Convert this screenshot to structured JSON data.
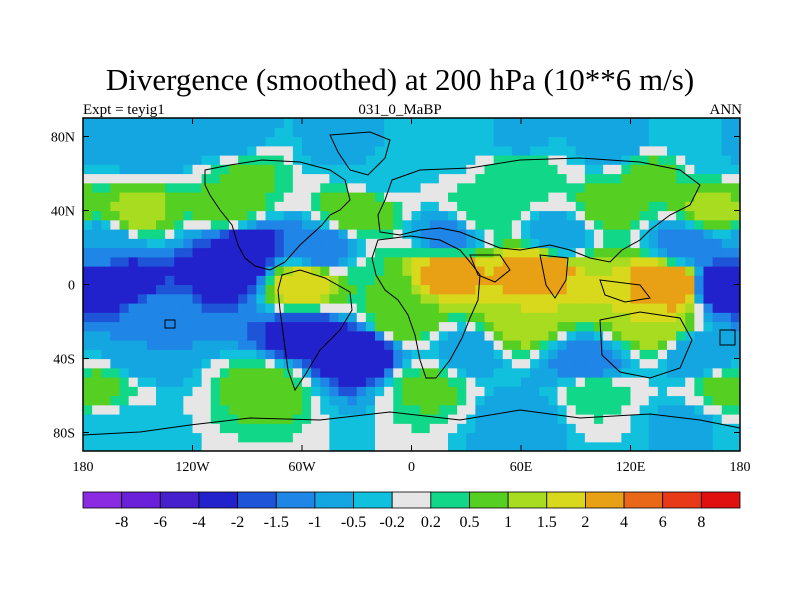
{
  "chart_data": {
    "type": "heatmap",
    "title": "Divergence (smoothed) at 200 hPa (10**6 m/s)",
    "subtitle_left": "Expt = teyig1",
    "subtitle_center": "031_0_MaBP",
    "subtitle_right": "ANN",
    "x_ticks": [
      "180",
      "120W",
      "60W",
      "0",
      "60E",
      "120E",
      "180"
    ],
    "y_ticks": [
      "80N",
      "40N",
      "0",
      "40S",
      "80S"
    ],
    "xlim": [
      -180,
      180
    ],
    "ylim": [
      -90,
      90
    ],
    "colorbar_labels": [
      "-8",
      "-6",
      "-4",
      "-2",
      "-1.5",
      "-1",
      "-0.5",
      "-0.2",
      "0.2",
      "0.5",
      "1",
      "1.5",
      "2",
      "4",
      "6",
      "8"
    ],
    "colorbar_levels": [
      -8,
      -6,
      -4,
      -2,
      -1.5,
      -1,
      -0.5,
      -0.2,
      0.2,
      0.5,
      1,
      1.5,
      2,
      4,
      6,
      8
    ],
    "colorbar_colors": [
      "#8a2be2",
      "#6a1fd8",
      "#4620cc",
      "#2222cc",
      "#1e55d8",
      "#1f85e6",
      "#14a6e0",
      "#10c0dc",
      "#e6e6e6",
      "#10d888",
      "#55d022",
      "#a8dc20",
      "#d8d81c",
      "#e8a014",
      "#e86818",
      "#e83a18",
      "#e01010"
    ],
    "field": [
      {
        "lon": -170,
        "lat": 75,
        "v": -0.6
      },
      {
        "lon": -140,
        "lat": 75,
        "v": -1
      },
      {
        "lon": -100,
        "lat": 78,
        "v": -0.8
      },
      {
        "lon": -40,
        "lat": 76,
        "v": -0.6
      },
      {
        "lon": 20,
        "lat": 75,
        "v": -0.4
      },
      {
        "lon": 60,
        "lat": 78,
        "v": -0.6
      },
      {
        "lon": 110,
        "lat": 76,
        "v": -0.8
      },
      {
        "lon": 160,
        "lat": 75,
        "v": -0.5
      },
      {
        "lon": -90,
        "lat": 60,
        "v": 0.6
      },
      {
        "lon": -20,
        "lat": 60,
        "v": -0.5
      },
      {
        "lon": 60,
        "lat": 62,
        "v": 0.5
      },
      {
        "lon": 130,
        "lat": 60,
        "v": 0.6
      },
      {
        "lon": -150,
        "lat": 40,
        "v": 1.2
      },
      {
        "lon": -100,
        "lat": 42,
        "v": 0.8
      },
      {
        "lon": -30,
        "lat": 40,
        "v": 1
      },
      {
        "lon": 40,
        "lat": 40,
        "v": 0.5
      },
      {
        "lon": 110,
        "lat": 42,
        "v": 0.7
      },
      {
        "lon": 165,
        "lat": 40,
        "v": 1.2
      },
      {
        "lon": -170,
        "lat": 22,
        "v": -1
      },
      {
        "lon": -90,
        "lat": 20,
        "v": -2.5
      },
      {
        "lon": -50,
        "lat": 20,
        "v": -1.5
      },
      {
        "lon": 20,
        "lat": 26,
        "v": -1.2
      },
      {
        "lon": 80,
        "lat": 26,
        "v": -1
      },
      {
        "lon": 150,
        "lat": 22,
        "v": -1.5
      },
      {
        "lon": -160,
        "lat": 0,
        "v": -3
      },
      {
        "lon": -100,
        "lat": 8,
        "v": -3
      },
      {
        "lon": -60,
        "lat": 0,
        "v": 2
      },
      {
        "lon": -20,
        "lat": 0,
        "v": 0.5
      },
      {
        "lon": 20,
        "lat": 8,
        "v": 2.5
      },
      {
        "lon": 70,
        "lat": 8,
        "v": 3
      },
      {
        "lon": 105,
        "lat": 0,
        "v": 1.5
      },
      {
        "lon": 140,
        "lat": 0,
        "v": 4
      },
      {
        "lon": 170,
        "lat": 0,
        "v": -3
      },
      {
        "lon": -140,
        "lat": -15,
        "v": -1.2
      },
      {
        "lon": -60,
        "lat": -28,
        "v": -2.5
      },
      {
        "lon": -5,
        "lat": -18,
        "v": 1
      },
      {
        "lon": 60,
        "lat": -20,
        "v": 1.5
      },
      {
        "lon": 130,
        "lat": -20,
        "v": 1.5
      },
      {
        "lon": -150,
        "lat": -38,
        "v": -1
      },
      {
        "lon": -30,
        "lat": -36,
        "v": -3
      },
      {
        "lon": 30,
        "lat": -36,
        "v": -0.8
      },
      {
        "lon": 95,
        "lat": -42,
        "v": -1.5
      },
      {
        "lon": 160,
        "lat": -40,
        "v": -1
      },
      {
        "lon": -170,
        "lat": -55,
        "v": 0.6
      },
      {
        "lon": -80,
        "lat": -55,
        "v": 0.8
      },
      {
        "lon": 10,
        "lat": -55,
        "v": 0.6
      },
      {
        "lon": 100,
        "lat": -58,
        "v": 0.4
      },
      {
        "lon": 170,
        "lat": -55,
        "v": 0.6
      },
      {
        "lon": -160,
        "lat": -78,
        "v": -0.5
      },
      {
        "lon": 60,
        "lat": -72,
        "v": -0.8
      },
      {
        "lon": 150,
        "lat": -75,
        "v": -0.6
      }
    ]
  }
}
